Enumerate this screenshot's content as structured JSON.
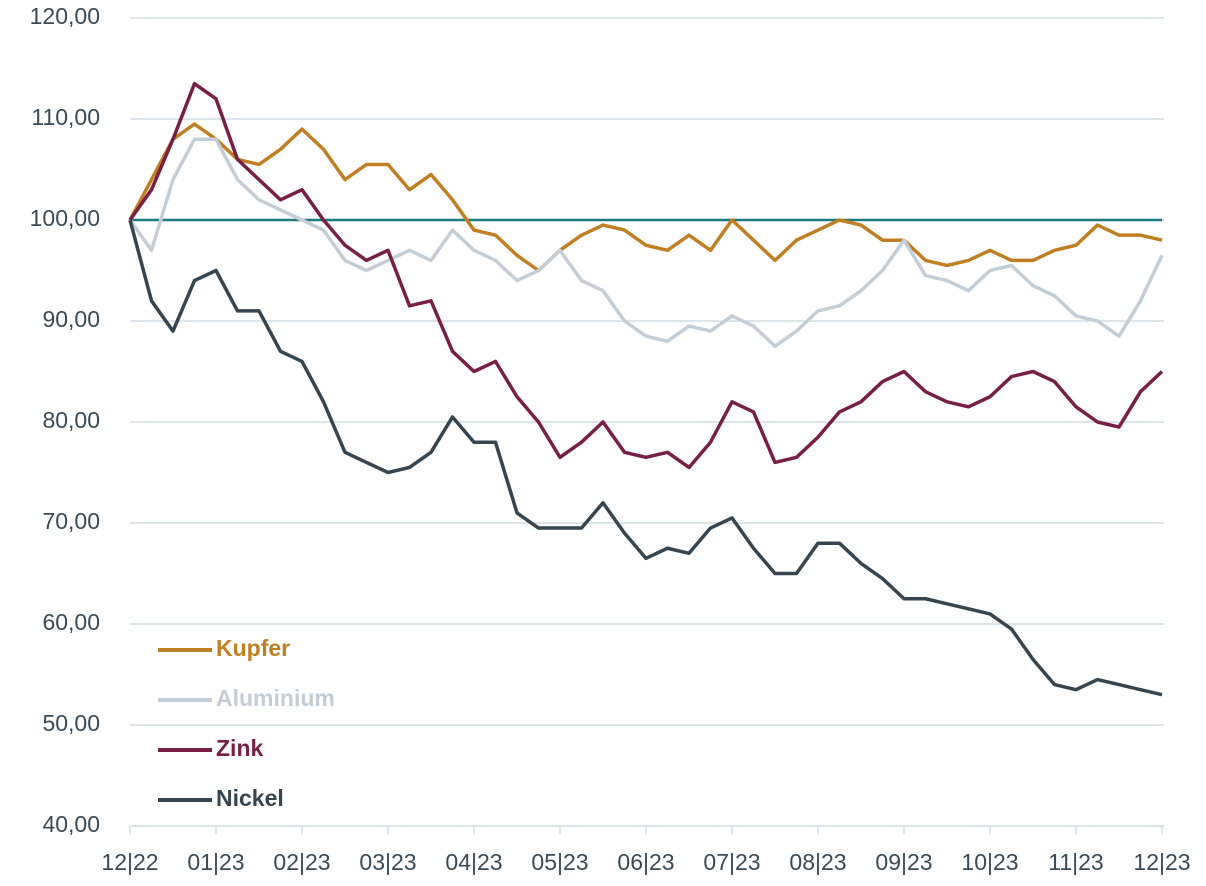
{
  "chart_data": {
    "type": "line",
    "x": [
      0,
      0.25,
      0.5,
      0.75,
      1,
      1.25,
      1.5,
      1.75,
      2,
      2.25,
      2.5,
      2.75,
      3,
      3.25,
      3.5,
      3.75,
      4,
      4.25,
      4.5,
      4.75,
      5,
      5.25,
      5.5,
      5.75,
      6,
      6.25,
      6.5,
      6.75,
      7,
      7.25,
      7.5,
      7.75,
      8,
      8.25,
      8.5,
      8.75,
      9,
      9.25,
      9.5,
      9.75,
      10,
      10.25,
      10.5,
      10.75,
      11,
      11.25,
      11.5,
      11.75,
      12
    ],
    "xlim": [
      0,
      12
    ],
    "xticks": [
      {
        "value": 0,
        "label": "12|22"
      },
      {
        "value": 1,
        "label": "01|23"
      },
      {
        "value": 2,
        "label": "02|23"
      },
      {
        "value": 3,
        "label": "03|23"
      },
      {
        "value": 4,
        "label": "04|23"
      },
      {
        "value": 5,
        "label": "05|23"
      },
      {
        "value": 6,
        "label": "06|23"
      },
      {
        "value": 7,
        "label": "07|23"
      },
      {
        "value": 8,
        "label": "08|23"
      },
      {
        "value": 9,
        "label": "09|23"
      },
      {
        "value": 10,
        "label": "10|23"
      },
      {
        "value": 11,
        "label": "11|23"
      },
      {
        "value": 12,
        "label": "12|23"
      }
    ],
    "ylim": [
      40,
      120
    ],
    "yticks": [
      {
        "value": 40,
        "label": "40,00"
      },
      {
        "value": 50,
        "label": "50,00"
      },
      {
        "value": 60,
        "label": "60,00"
      },
      {
        "value": 70,
        "label": "70,00"
      },
      {
        "value": 80,
        "label": "80,00"
      },
      {
        "value": 90,
        "label": "90,00"
      },
      {
        "value": 100,
        "label": "100,00"
      },
      {
        "value": 110,
        "label": "110,00"
      },
      {
        "value": 120,
        "label": "120,00"
      }
    ],
    "grid": true,
    "reference_line": {
      "value": 100,
      "color": "#1f7a80"
    },
    "legend": "lower left",
    "series": [
      {
        "name": "Kupfer",
        "color": "#c17f24",
        "values": [
          100,
          104,
          108,
          109.5,
          108,
          106,
          105.5,
          107,
          109,
          107,
          104,
          105.5,
          105.5,
          103,
          104.5,
          102,
          99,
          98.5,
          96.5,
          95,
          97,
          98.5,
          99.5,
          99,
          97.5,
          97,
          98.5,
          97,
          100,
          98,
          96,
          98,
          99,
          100,
          99.5,
          98,
          98,
          96,
          95.5,
          96,
          97,
          96,
          96,
          97,
          97.5,
          99.5,
          98.5,
          98.5,
          98
        ]
      },
      {
        "name": "Aluminium",
        "color": "#c5ced6",
        "values": [
          100,
          97,
          104,
          108,
          108,
          104,
          102,
          101,
          100,
          99,
          96,
          95,
          96,
          97,
          96,
          99,
          97,
          96,
          94,
          95,
          97,
          94,
          93,
          90,
          88.5,
          88,
          89.5,
          89,
          90.5,
          89.5,
          87.5,
          89,
          91,
          91.5,
          93,
          95,
          98,
          94.5,
          94,
          93,
          95,
          95.5,
          93.5,
          92.5,
          90.5,
          90,
          88.5,
          92,
          96.5
        ]
      },
      {
        "name": "Zink",
        "color": "#781f45",
        "values": [
          100,
          103,
          108,
          113.5,
          112,
          106,
          104,
          102,
          103,
          100,
          97.5,
          96,
          97,
          91.5,
          92,
          87,
          85,
          86,
          82.5,
          80,
          76.5,
          78,
          80,
          77,
          76.5,
          77,
          75.5,
          78,
          82,
          81,
          76,
          76.5,
          78.5,
          81,
          82,
          84,
          85,
          83,
          82,
          81.5,
          82.5,
          84.5,
          85,
          84,
          81.5,
          80,
          79.5,
          83,
          85
        ]
      },
      {
        "name": "Nickel",
        "color": "#36454f",
        "values": [
          100,
          92,
          89,
          94,
          95,
          91,
          91,
          87,
          86,
          82,
          77,
          76,
          75,
          75.5,
          77,
          80.5,
          78,
          78,
          71,
          69.5,
          69.5,
          69.5,
          72,
          69,
          66.5,
          67.5,
          67,
          69.5,
          70.5,
          67.5,
          65,
          65,
          68,
          68,
          66,
          64.5,
          62.5,
          62.5,
          62,
          61.5,
          61,
          59.5,
          56.5,
          54,
          53.5,
          54.5,
          54,
          53.5,
          53
        ]
      }
    ]
  }
}
